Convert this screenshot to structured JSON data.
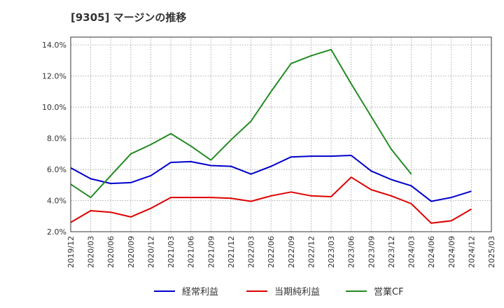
{
  "title": "[9305]  マージンの推移",
  "chart_data": {
    "type": "line",
    "title": "[9305]  マージンの推移",
    "x": [
      "2019/12",
      "2020/03",
      "2020/06",
      "2020/09",
      "2020/12",
      "2021/03",
      "2021/06",
      "2021/09",
      "2021/12",
      "2022/03",
      "2022/06",
      "2022/09",
      "2022/12",
      "2023/03",
      "2023/06",
      "2023/09",
      "2023/12",
      "2024/03",
      "2024/06",
      "2024/09",
      "2024/12",
      "2025/03"
    ],
    "ylim": [
      2.0,
      14.5
    ],
    "yticks": [
      2.0,
      4.0,
      6.0,
      8.0,
      10.0,
      12.0,
      14.0
    ],
    "ytick_labels": [
      "2.0%",
      "4.0%",
      "6.0%",
      "8.0%",
      "10.0%",
      "12.0%",
      "14.0%"
    ],
    "grid": true,
    "legend_position": "bottom",
    "series": [
      {
        "name": "経常利益",
        "color": "#0000cc",
        "values": [
          6.1,
          5.4,
          5.1,
          5.15,
          5.6,
          6.45,
          6.5,
          6.25,
          6.2,
          5.7,
          6.2,
          6.8,
          6.85,
          6.85,
          6.9,
          5.9,
          5.35,
          4.95,
          3.95,
          4.2,
          4.6,
          null
        ]
      },
      {
        "name": "当期純利益",
        "color": "#dd0000",
        "values": [
          2.6,
          3.35,
          3.25,
          2.95,
          3.5,
          4.2,
          4.2,
          4.2,
          4.15,
          3.95,
          4.3,
          4.55,
          4.3,
          4.25,
          5.5,
          4.7,
          4.3,
          3.8,
          2.55,
          2.7,
          3.45,
          null
        ]
      },
      {
        "name": "営業CF",
        "color": "#228b22",
        "values": [
          5.05,
          4.2,
          5.6,
          7.0,
          7.6,
          8.3,
          7.5,
          6.6,
          7.9,
          9.1,
          11.0,
          12.8,
          13.3,
          13.7,
          11.5,
          9.4,
          7.3,
          5.7,
          null,
          null,
          null,
          null
        ]
      }
    ]
  }
}
